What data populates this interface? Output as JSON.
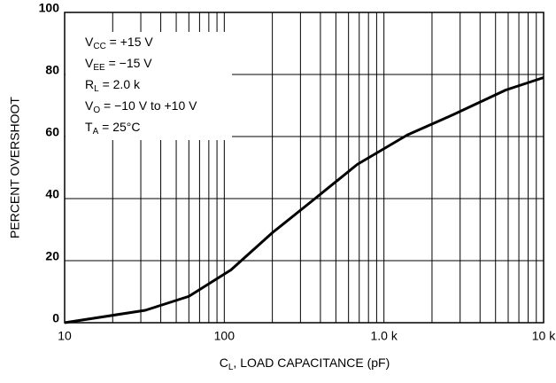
{
  "chart_data": {
    "type": "line",
    "x_label": {
      "main": "C",
      "sub": "L",
      "rest": ", LOAD CAPACITANCE (pF)"
    },
    "y_label": "PERCENT OVERSHOOT",
    "annotations": [
      {
        "main": "V",
        "sub": "CC",
        "rest": " =  +15 V"
      },
      {
        "main": "V",
        "sub": "EE",
        "rest": " = −15 V"
      },
      {
        "main": "R",
        "sub": "L",
        "rest": " = 2.0 k"
      },
      {
        "main": "V",
        "sub": "O",
        "rest": " = −10 V to +10 V"
      },
      {
        "main": "T",
        "sub": "A",
        "rest": " = 25°C"
      }
    ],
    "x": [
      10,
      32,
      60,
      110,
      200,
      350,
      680,
      1400,
      2700,
      5800,
      10000
    ],
    "series": [
      {
        "name": "overshoot",
        "color": "#000000",
        "values": [
          0,
          4,
          8.5,
          17,
          29,
          39,
          51,
          60.5,
          67,
          75,
          79
        ]
      }
    ],
    "xlim": [
      10,
      10000
    ],
    "ylim": [
      0,
      100
    ],
    "xscale": "log",
    "xticks": [
      10,
      100,
      {
        "value": 1000,
        "label": "1.0 k"
      },
      {
        "value": 10000,
        "label": "10 k"
      }
    ],
    "xminorticks": [
      20,
      30,
      40,
      50,
      60,
      70,
      80,
      90,
      200,
      300,
      400,
      500,
      600,
      700,
      800,
      900,
      2000,
      3000,
      4000,
      5000,
      6000,
      7000,
      8000,
      9000
    ],
    "yticks": [
      0,
      20,
      40,
      60,
      80,
      100
    ],
    "grid": true
  }
}
